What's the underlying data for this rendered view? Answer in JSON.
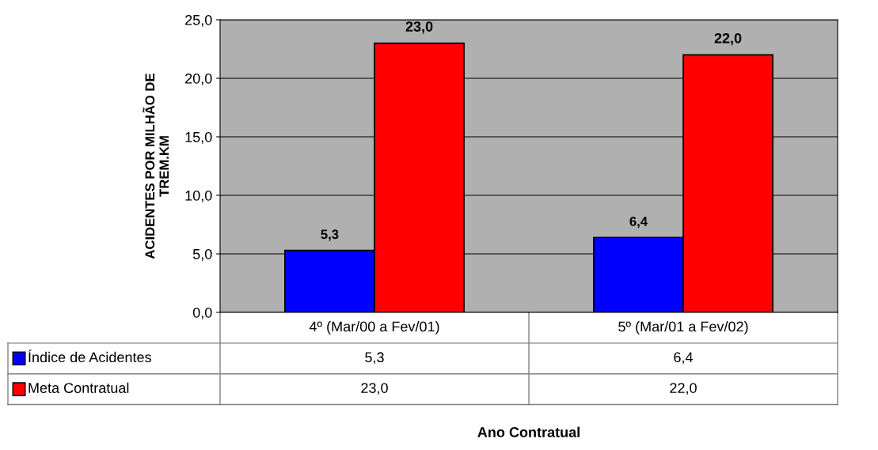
{
  "chart_data": {
    "type": "bar",
    "annotations": [
      "Ano Contratual"
    ],
    "ylabel": "ACIDENTES POR MILHÃO DE\nTREM.KM",
    "categories": [
      "4º (Mar/00 a Fev/01)",
      "5º (Mar/01 a Fev/02)"
    ],
    "series": [
      {
        "name": "Índice de Acidentes",
        "color": "#0000ff",
        "values": [
          5.3,
          6.4
        ],
        "value_labels": [
          "5,3",
          "6,4"
        ]
      },
      {
        "name": "Meta Contratual",
        "color": "#ff0000",
        "values": [
          23.0,
          22.0
        ],
        "value_labels": [
          "23,0",
          "22,0"
        ]
      }
    ],
    "ylim": [
      0,
      25
    ],
    "yticks": [
      {
        "value": 0,
        "label": "0,0"
      },
      {
        "value": 5,
        "label": "5,0"
      },
      {
        "value": 10,
        "label": "10,0"
      },
      {
        "value": 15,
        "label": "15,0"
      },
      {
        "value": 20,
        "label": "20,0"
      },
      {
        "value": 25,
        "label": "25,0"
      }
    ],
    "grid": "y",
    "legend": "bottom left"
  }
}
